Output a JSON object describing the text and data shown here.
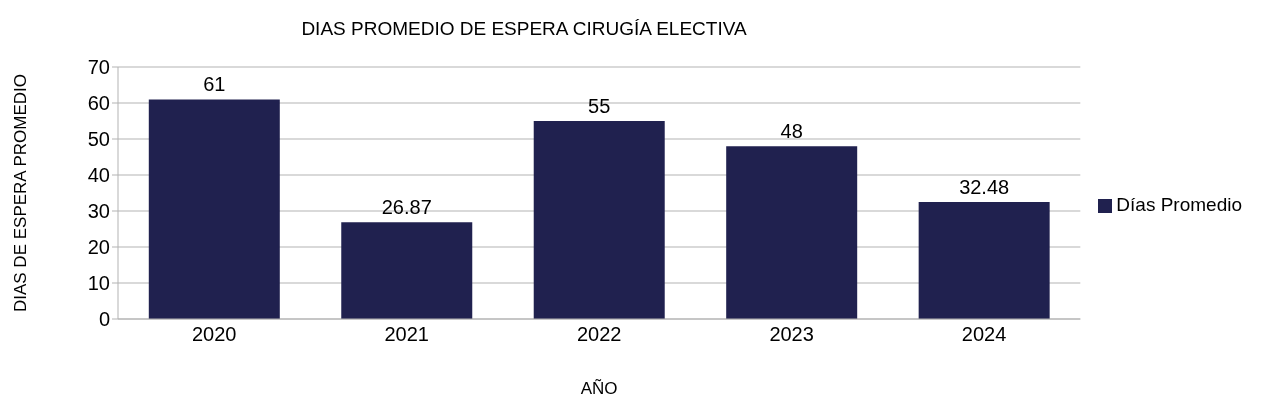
{
  "chart_data": {
    "type": "bar",
    "title": "DIAS PROMEDIO DE ESPERA CIRUGÍA ELECTIVA",
    "xlabel": "AÑO",
    "ylabel": "DIAS DE ESPERA PROMEDIO",
    "categories": [
      "2020",
      "2021",
      "2022",
      "2023",
      "2024"
    ],
    "series": [
      {
        "name": "Días Promedio",
        "color": "#20214f",
        "values": [
          61,
          26.87,
          55,
          48,
          32.48
        ]
      }
    ],
    "ylim": [
      0,
      70
    ],
    "yticks": [
      0,
      10,
      20,
      30,
      40,
      50,
      60,
      70
    ],
    "grid": "y",
    "legend": "right",
    "data_labels": true
  }
}
